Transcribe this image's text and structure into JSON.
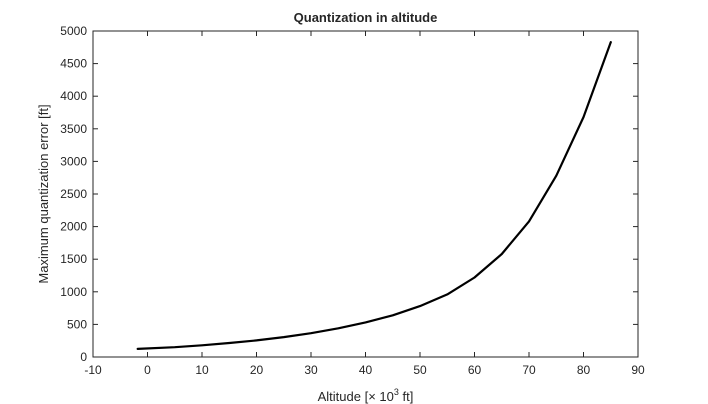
{
  "chart_data": {
    "type": "line",
    "title": "Quantization in altitude",
    "xlabel": {
      "prefix": "Altitude [",
      "times": "×",
      "base": " 10",
      "exponent": "3",
      "suffix": " ft]"
    },
    "ylabel": "Maximum quantization error [ft]",
    "xlim": [
      -10,
      90
    ],
    "ylim": [
      0,
      5000
    ],
    "x_ticks": [
      -10,
      0,
      10,
      20,
      30,
      40,
      50,
      60,
      70,
      80,
      90
    ],
    "y_ticks": [
      0,
      500,
      1000,
      1500,
      2000,
      2500,
      3000,
      3500,
      4000,
      4500,
      5000
    ],
    "x_tick_labels": [
      "-10",
      "0",
      "10",
      "20",
      "30",
      "40",
      "50",
      "60",
      "70",
      "80",
      "90"
    ],
    "y_tick_labels": [
      "0",
      "500",
      "1000",
      "1500",
      "2000",
      "2500",
      "3000",
      "3500",
      "4000",
      "4500",
      "5000"
    ],
    "grid": false,
    "box": true,
    "series": [
      {
        "color": "#000000",
        "x": [
          -1.8,
          5,
          10,
          15,
          20,
          25,
          30,
          35,
          40,
          45,
          50,
          55,
          60,
          65,
          70,
          75,
          80,
          85
        ],
        "y": [
          125,
          150,
          180,
          215,
          255,
          305,
          365,
          440,
          530,
          640,
          780,
          960,
          1220,
          1580,
          2080,
          2780,
          3680,
          4830
        ]
      }
    ]
  }
}
